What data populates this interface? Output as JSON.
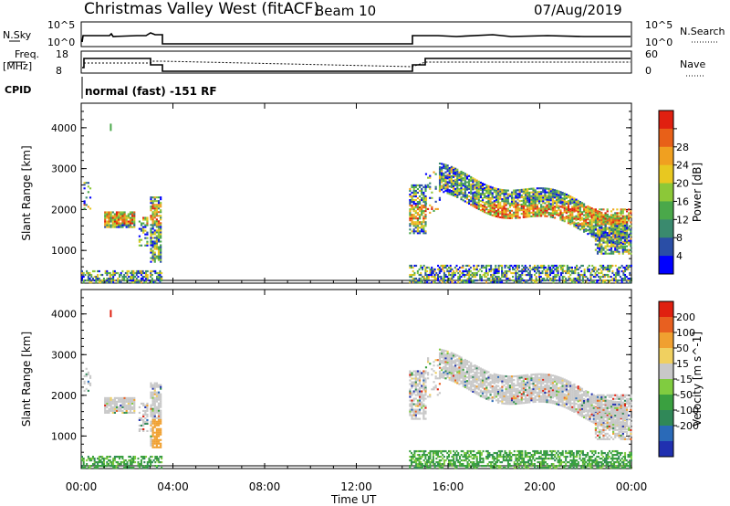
{
  "header": {
    "title": "Christmas Valley West (fitACF)",
    "beam": "Beam 10",
    "date": "07/Aug/2019"
  },
  "small_panels": {
    "nsky_label": "N.Sky",
    "nsearch_label": "N.Search",
    "nsky_ticks": [
      "10^5",
      "10^0"
    ],
    "nsearch_ticks": [
      "10^5",
      "10^0"
    ],
    "freq_label_1": "Freq.",
    "freq_label_2": "[MHz]",
    "freq_ticks": [
      "18",
      "8"
    ],
    "nave_label": "Nave",
    "nave_ticks": [
      "60",
      "0"
    ],
    "cpid_label": "CPID",
    "cpid_text": "normal (fast) -151 RF"
  },
  "chart_data": [
    {
      "type": "heatmap",
      "quantity": "power",
      "ylabel": "Slant Range [km]",
      "xlabel": "Time UT",
      "x_ticks": [
        "00:00",
        "04:00",
        "08:00",
        "12:00",
        "16:00",
        "20:00",
        "00:00"
      ],
      "y_ticks": [
        "1000",
        "2000",
        "3000",
        "4000"
      ],
      "ylim": [
        200,
        4600
      ],
      "colorbar": {
        "label": "Power [dB]",
        "ticks": [
          "4",
          "8",
          "12",
          "16",
          "20",
          "24",
          "28"
        ],
        "colors": [
          "#0000ff",
          "#2a4ea6",
          "#3a8a6e",
          "#4aa84a",
          "#8cc838",
          "#e8c820",
          "#f0a020",
          "#e86018",
          "#e02010"
        ]
      }
    },
    {
      "type": "heatmap",
      "quantity": "velocity",
      "ylabel": "Slant Range [km]",
      "xlabel": "Time UT",
      "x_ticks": [
        "00:00",
        "04:00",
        "08:00",
        "12:00",
        "16:00",
        "20:00",
        "00:00"
      ],
      "y_ticks": [
        "1000",
        "2000",
        "3000",
        "4000"
      ],
      "ylim": [
        200,
        4600
      ],
      "colorbar": {
        "label": "Velocity [m s^-1]",
        "ticks": [
          "200",
          "100",
          "50",
          "15",
          "-15",
          "-50",
          "-100",
          "-200"
        ],
        "colors": [
          "#2030b0",
          "#2a6ab8",
          "#308858",
          "#3aa040",
          "#80cc40",
          "#c8c8c8",
          "#f0d060",
          "#f0a030",
          "#e86020",
          "#e02010"
        ]
      }
    }
  ]
}
